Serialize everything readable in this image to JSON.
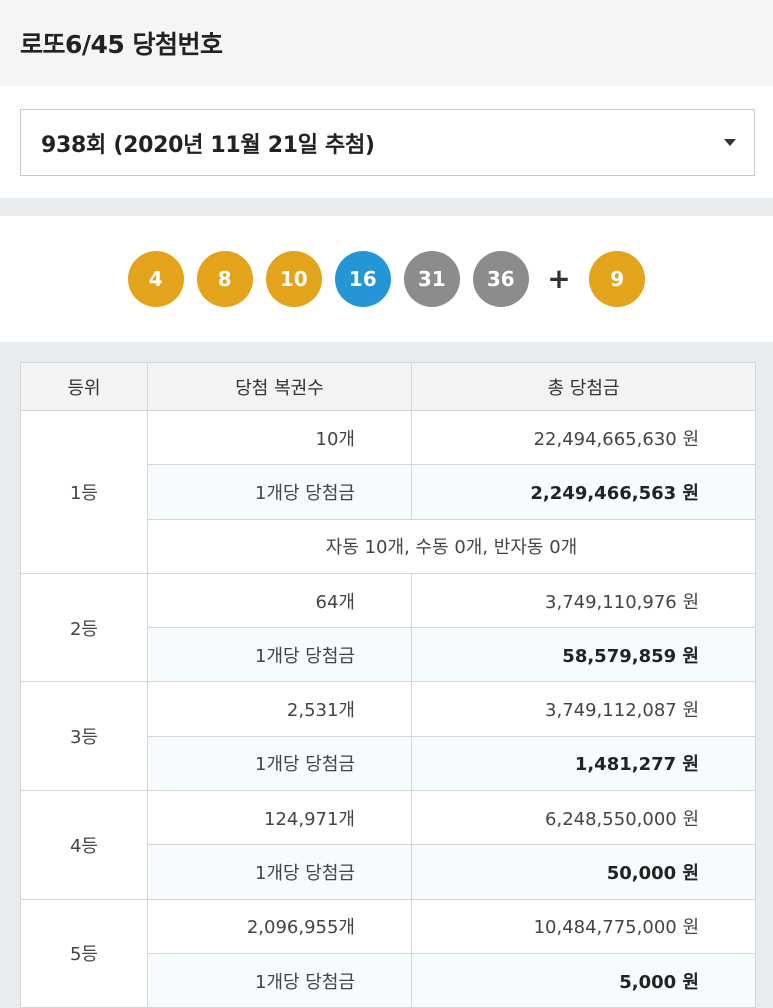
{
  "header": {
    "title": "로또6/45 당첨번호"
  },
  "draw_select": {
    "value": "938회 (2020년 11월 21일 추첨)"
  },
  "numbers": {
    "main": [
      {
        "n": "4",
        "color": "#e3a31a"
      },
      {
        "n": "8",
        "color": "#e3a31a"
      },
      {
        "n": "10",
        "color": "#e3a31a"
      },
      {
        "n": "16",
        "color": "#2496d6"
      },
      {
        "n": "31",
        "color": "#8c8c8c"
      },
      {
        "n": "36",
        "color": "#8c8c8c"
      }
    ],
    "plus": "+",
    "bonus": {
      "n": "9",
      "color": "#e3a31a"
    }
  },
  "table": {
    "headers": [
      "등위",
      "당첨 복권수",
      "총 당첨금"
    ],
    "per_label": "1개당 당첨금",
    "ranks": [
      {
        "rank": "1등",
        "count": "10개",
        "total": "22,494,665,630 원",
        "per": "2,249,466,563 원",
        "note": "자동 10개, 수동 0개, 반자동 0개"
      },
      {
        "rank": "2등",
        "count": "64개",
        "total": "3,749,110,976 원",
        "per": "58,579,859 원"
      },
      {
        "rank": "3등",
        "count": "2,531개",
        "total": "3,749,112,087 원",
        "per": "1,481,277 원"
      },
      {
        "rank": "4등",
        "count": "124,971개",
        "total": "6,248,550,000 원",
        "per": "50,000 원"
      },
      {
        "rank": "5등",
        "count": "2,096,955개",
        "total": "10,484,775,000 원",
        "per": "5,000 원"
      }
    ]
  }
}
